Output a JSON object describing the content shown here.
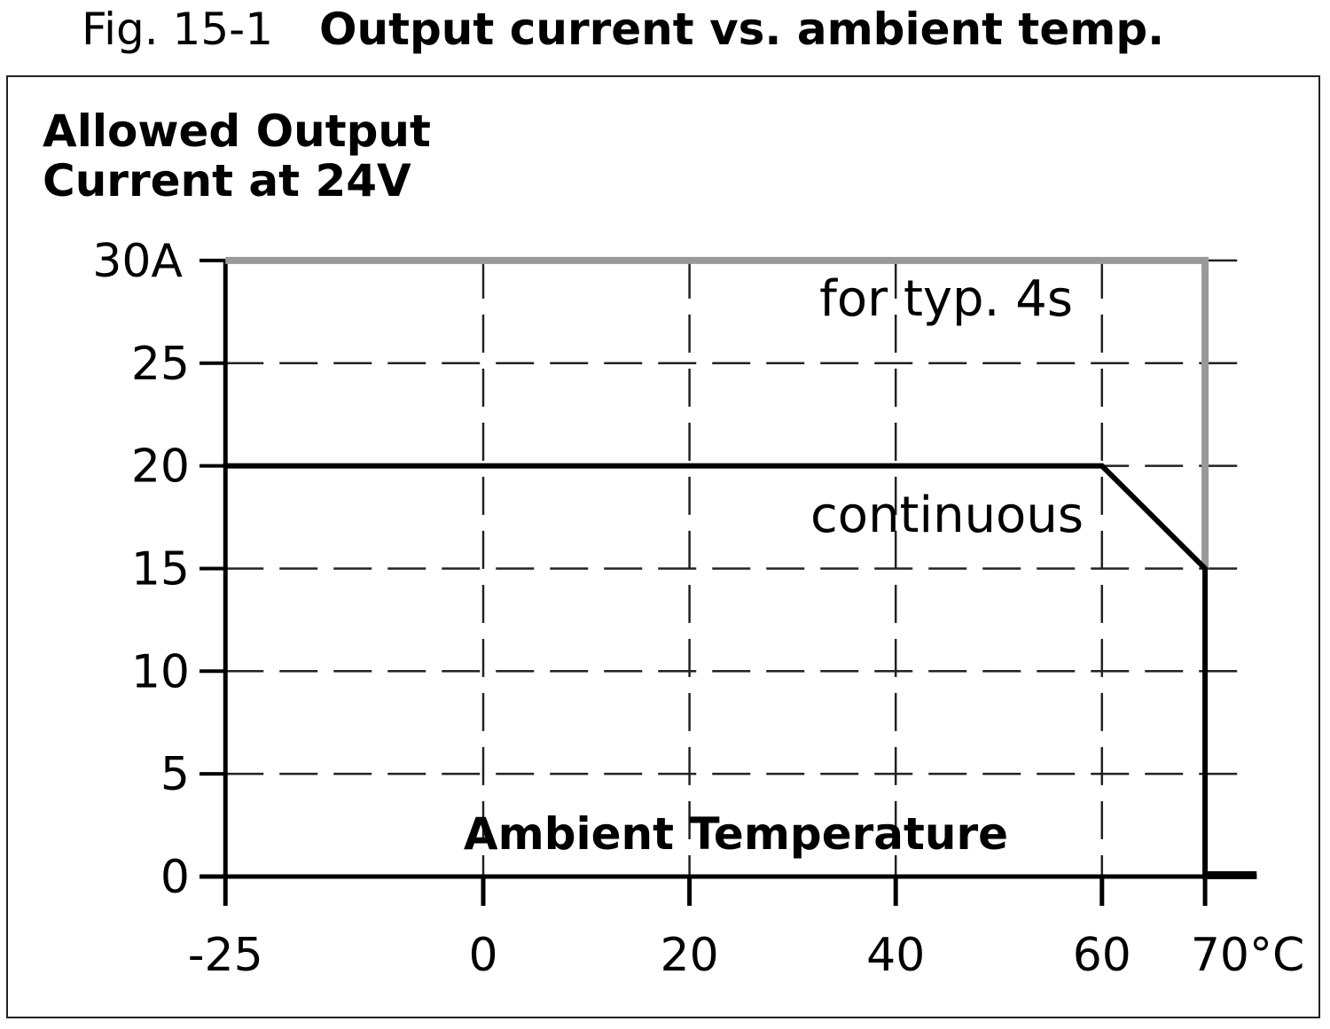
{
  "figure": {
    "number": "Fig. 15-1",
    "title": "Output current vs. ambient temp."
  },
  "chart_data": {
    "type": "line",
    "title": "Output current vs. ambient temp.",
    "ylabel_line1": "Allowed Output",
    "ylabel_line2": "Current at 24V",
    "xlabel": "Ambient Temperature",
    "xlim": [
      -25,
      75
    ],
    "ylim": [
      0,
      30
    ],
    "xticks": [
      -25,
      0,
      20,
      40,
      60,
      70
    ],
    "xtick_labels": [
      "-25",
      "0",
      "20",
      "40",
      "60",
      "70°C"
    ],
    "yticks": [
      0,
      5,
      10,
      15,
      20,
      25,
      30
    ],
    "ytick_labels": [
      "0",
      "5",
      "10",
      "15",
      "20",
      "25",
      "30A"
    ],
    "grid": true,
    "series": [
      {
        "name": "for typ. 4s",
        "color": "#999999",
        "x": [
          -25,
          70,
          70
        ],
        "y": [
          30,
          30,
          15
        ]
      },
      {
        "name": "continuous",
        "color": "#000000",
        "x": [
          -25,
          60,
          70,
          70,
          75
        ],
        "y": [
          20,
          20,
          15,
          0,
          0
        ]
      }
    ]
  }
}
